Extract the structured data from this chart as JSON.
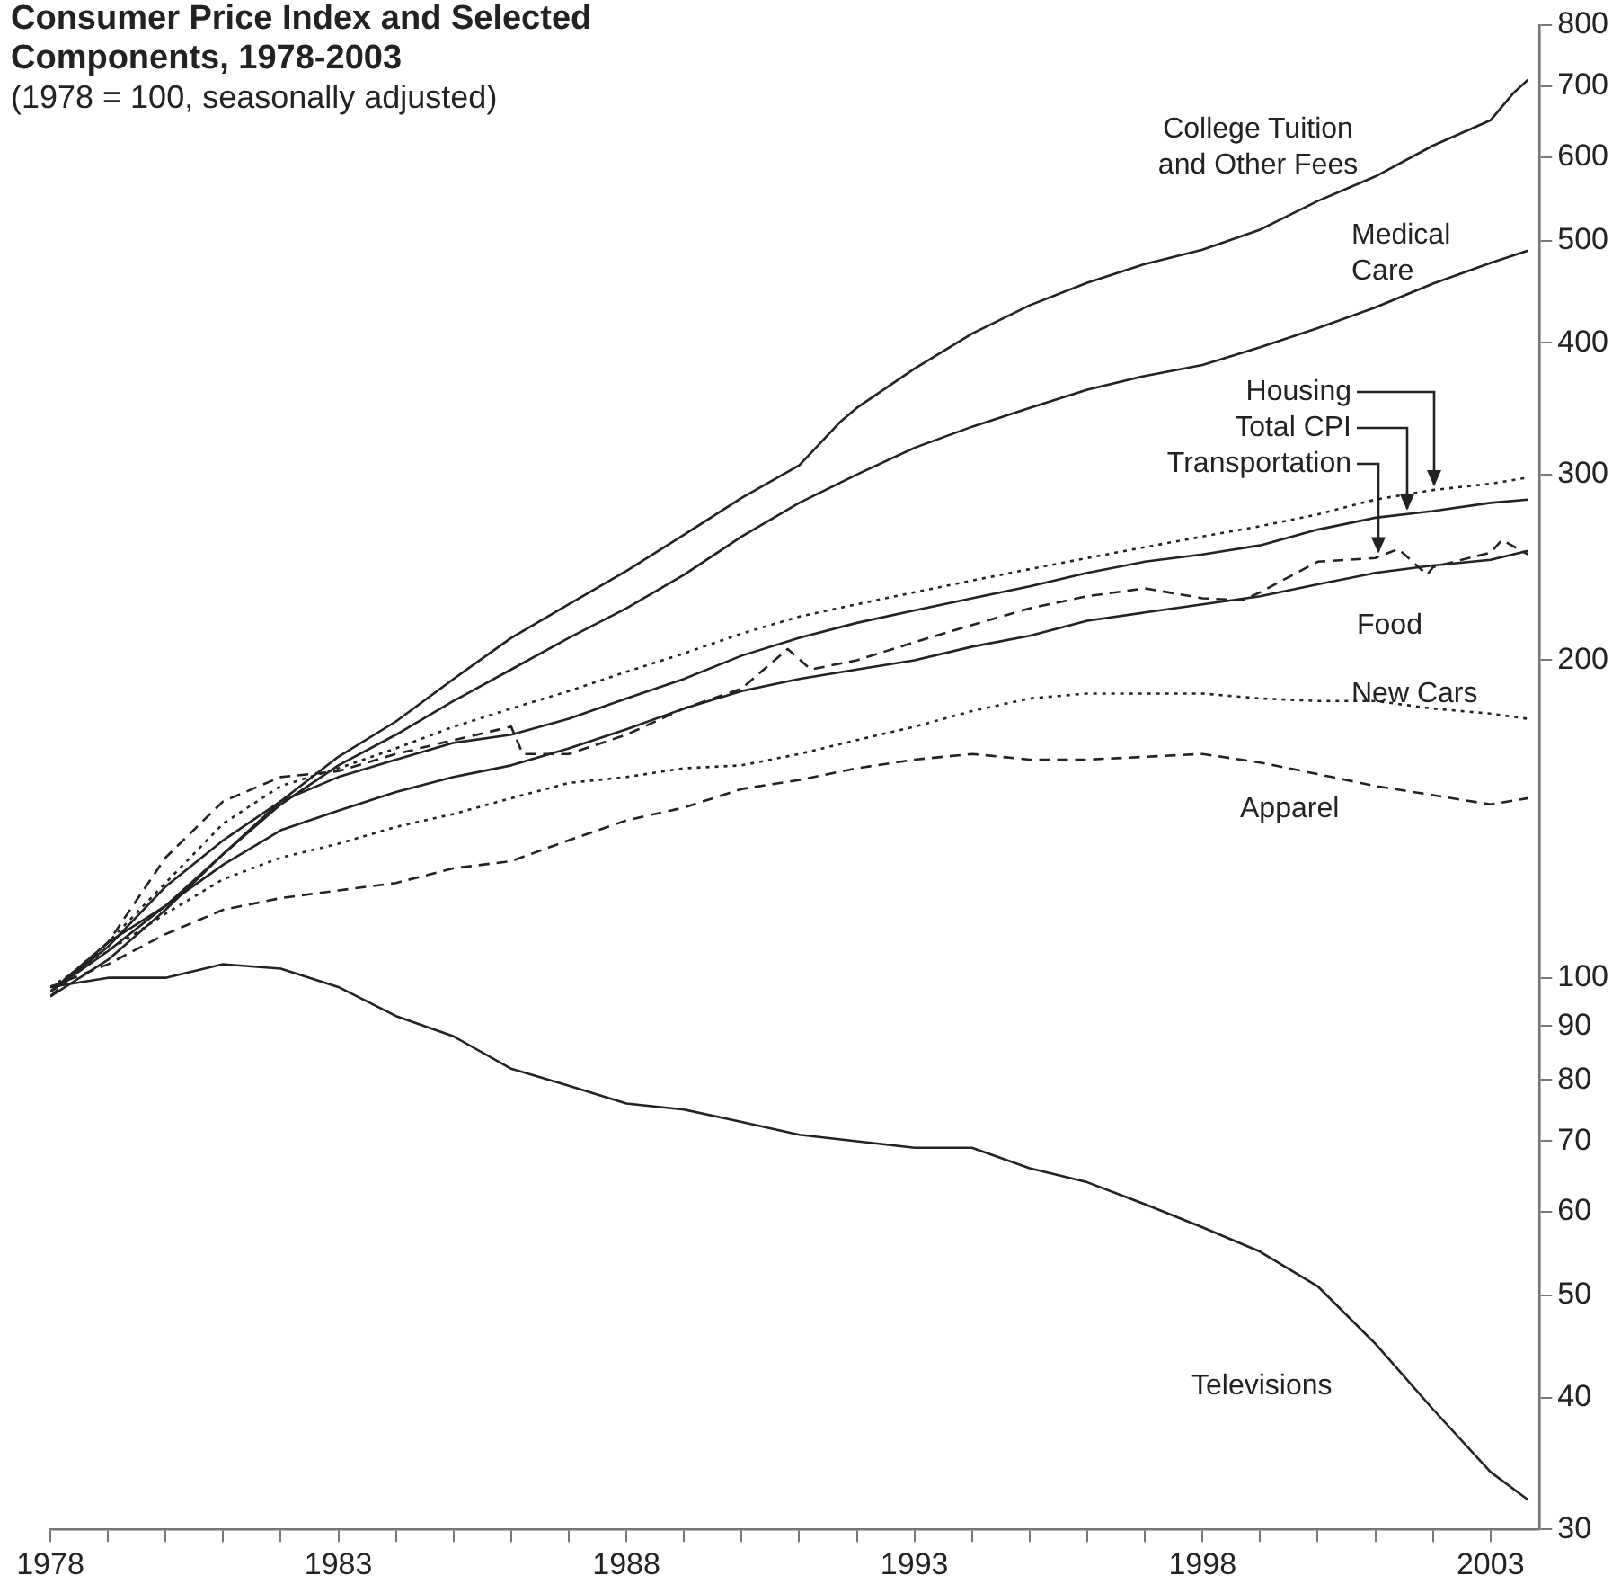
{
  "chart_data": {
    "type": "line",
    "title": "Consumer Price Index and Selected Components, 1978-2003",
    "subtitle": "(1978 = 100, seasonally adjusted)",
    "log": "y",
    "grid": false,
    "marker": "none",
    "xlim": [
      1978,
      2003.85
    ],
    "xticks": [
      1978,
      {
        "value": 1979,
        "label": null
      },
      {
        "value": 1980,
        "label": null
      },
      {
        "value": 1981,
        "label": null
      },
      {
        "value": 1982,
        "label": null
      },
      1983,
      {
        "value": 1984,
        "label": null
      },
      {
        "value": 1985,
        "label": null
      },
      {
        "value": 1986,
        "label": null
      },
      {
        "value": 1987,
        "label": null
      },
      1988,
      {
        "value": 1989,
        "label": null
      },
      {
        "value": 1990,
        "label": null
      },
      {
        "value": 1991,
        "label": null
      },
      {
        "value": 1992,
        "label": null
      },
      1993,
      {
        "value": 1994,
        "label": null
      },
      {
        "value": 1995,
        "label": null
      },
      {
        "value": 1996,
        "label": null
      },
      {
        "value": 1997,
        "label": null
      },
      1998,
      {
        "value": 1999,
        "label": null
      },
      {
        "value": 2000,
        "label": null
      },
      {
        "value": 2001,
        "label": null
      },
      {
        "value": 2002,
        "label": null
      },
      2003
    ],
    "ylim": [
      30,
      800
    ],
    "yticks": [
      30,
      40,
      50,
      60,
      70,
      80,
      90,
      100,
      200,
      300,
      400,
      500,
      600,
      700,
      800
    ],
    "series": [
      {
        "name": "College Tuition and Other Fees",
        "color": "#222222",
        "line_style": "solid",
        "x": [
          1978,
          1979,
          1980,
          1981,
          1982,
          1983,
          1984,
          1985,
          1986,
          1987,
          1988,
          1989,
          1990,
          1991,
          1991.7,
          1992,
          1993,
          1994,
          1995,
          1996,
          1997,
          1998,
          1999,
          2000,
          2001,
          2002,
          2003,
          2003.4,
          2003.65
        ],
        "values": [
          96,
          104,
          116,
          131,
          147,
          162,
          175,
          192,
          210,
          226,
          243,
          263,
          285,
          306,
          336,
          347,
          378,
          408,
          434,
          456,
          475,
          490,
          512,
          545,
          575,
          615,
          650,
          690,
          710
        ]
      },
      {
        "name": "Medical Care",
        "color": "#222222",
        "line_style": "solid",
        "x": [
          1978,
          1979,
          1980,
          1981,
          1982,
          1983,
          1984,
          1985,
          1986,
          1987,
          1988,
          1989,
          1990,
          1991,
          1992,
          1993,
          1994,
          1995,
          1996,
          1997,
          1998,
          1999,
          2000,
          2001,
          2002,
          2003,
          2003.65
        ],
        "values": [
          97,
          106,
          117,
          131,
          146,
          159,
          170,
          183,
          196,
          210,
          224,
          241,
          262,
          282,
          300,
          318,
          333,
          347,
          361,
          372,
          381,
          396,
          413,
          432,
          455,
          476,
          489
        ]
      },
      {
        "name": "Housing",
        "color": "#222222",
        "line_style": "dotted",
        "x": [
          1978,
          1979,
          1980,
          1981,
          1982,
          1983,
          1984,
          1985,
          1986,
          1987,
          1988,
          1989,
          1990,
          1991,
          1992,
          1993,
          1994,
          1995,
          1996,
          1997,
          1998,
          1999,
          2000,
          2001,
          2002,
          2003,
          2003.65
        ],
        "values": [
          97,
          108,
          123,
          140,
          152,
          158,
          165,
          173,
          180,
          187,
          195,
          203,
          212,
          220,
          226,
          232,
          238,
          244,
          250,
          256,
          262,
          268,
          275,
          284,
          290,
          294,
          298
        ]
      },
      {
        "name": "Total CPI",
        "color": "#222222",
        "line_style": "solid",
        "x": [
          1978,
          1979,
          1980,
          1981,
          1982,
          1983,
          1984,
          1985,
          1986,
          1987,
          1988,
          1989,
          1990,
          1991,
          1992,
          1993,
          1994,
          1995,
          1996,
          1997,
          1998,
          1999,
          2000,
          2001,
          2002,
          2003,
          2003.65
        ],
        "values": [
          97,
          107,
          122,
          135,
          147,
          155,
          161,
          167,
          170,
          176,
          184,
          192,
          202,
          210,
          217,
          223,
          229,
          235,
          242,
          248,
          252,
          257,
          266,
          273,
          277,
          282,
          284
        ]
      },
      {
        "name": "Transportation",
        "color": "#222222",
        "line_style": "dashed",
        "x": [
          1978,
          1979,
          1980,
          1981,
          1982,
          1983,
          1984,
          1985,
          1986,
          1986.2,
          1987,
          1988,
          1989,
          1990,
          1990.8,
          1991.2,
          1992,
          1993,
          1994,
          1995,
          1996,
          1997,
          1998,
          1998.7,
          1999,
          2000,
          2001,
          2001.4,
          2001.9,
          2002,
          2003,
          2003.2,
          2003.65
        ],
        "values": [
          96,
          108,
          130,
          147,
          155,
          157,
          163,
          168,
          173,
          163,
          163,
          170,
          180,
          188,
          205,
          196,
          200,
          208,
          216,
          224,
          230,
          234,
          229,
          228,
          232,
          248,
          250,
          255,
          241,
          245,
          253,
          260,
          252
        ]
      },
      {
        "name": "Food",
        "color": "#222222",
        "line_style": "solid",
        "x": [
          1978,
          1979,
          1980,
          1981,
          1982,
          1983,
          1984,
          1985,
          1986,
          1987,
          1988,
          1989,
          1990,
          1991,
          1992,
          1993,
          1994,
          1995,
          1996,
          1997,
          1998,
          1999,
          2000,
          2001,
          2002,
          2003,
          2003.65
        ],
        "values": [
          97,
          108,
          117,
          128,
          138,
          144,
          150,
          155,
          159,
          165,
          172,
          180,
          187,
          192,
          196,
          200,
          206,
          211,
          218,
          222,
          226,
          230,
          236,
          242,
          246,
          249,
          254
        ]
      },
      {
        "name": "New Cars",
        "color": "#222222",
        "line_style": "dotted",
        "x": [
          1978,
          1979,
          1980,
          1981,
          1982,
          1983,
          1984,
          1985,
          1986,
          1987,
          1988,
          1989,
          1990,
          1991,
          1992,
          1993,
          1994,
          1995,
          1996,
          1997,
          1998,
          1999,
          2000,
          2001,
          2002,
          2003,
          2003.65
        ],
        "values": [
          98,
          106,
          115,
          124,
          130,
          134,
          139,
          143,
          148,
          153,
          155,
          158,
          159,
          163,
          168,
          173,
          179,
          184,
          186,
          186,
          186,
          184,
          183,
          183,
          180,
          178,
          176
        ]
      },
      {
        "name": "Apparel",
        "color": "#222222",
        "line_style": "dashed",
        "x": [
          1978,
          1979,
          1980,
          1981,
          1982,
          1983,
          1984,
          1985,
          1986,
          1987,
          1988,
          1989,
          1990,
          1991,
          1992,
          1993,
          1994,
          1995,
          1996,
          1997,
          1998,
          1999,
          2000,
          2001,
          2002,
          2003,
          2003.65
        ],
        "values": [
          98,
          103,
          110,
          116,
          119,
          121,
          123,
          127,
          129,
          135,
          141,
          145,
          151,
          154,
          158,
          161,
          163,
          161,
          161,
          162,
          163,
          160,
          156,
          152,
          149,
          146,
          148
        ]
      },
      {
        "name": "Televisions",
        "color": "#222222",
        "line_style": "solid",
        "x": [
          1978,
          1979,
          1980,
          1981,
          1982,
          1983,
          1984,
          1985,
          1986,
          1987,
          1988,
          1989,
          1990,
          1991,
          1992,
          1993,
          1994,
          1995,
          1996,
          1997,
          1998,
          1999,
          2000,
          2001,
          2002,
          2003,
          2003.65
        ],
        "values": [
          98,
          100,
          100,
          103,
          102,
          98,
          92,
          88,
          82,
          79,
          76,
          75,
          73,
          71,
          70,
          69,
          69,
          66,
          64,
          61,
          58,
          55,
          51,
          45,
          39,
          34,
          32
        ]
      }
    ]
  }
}
